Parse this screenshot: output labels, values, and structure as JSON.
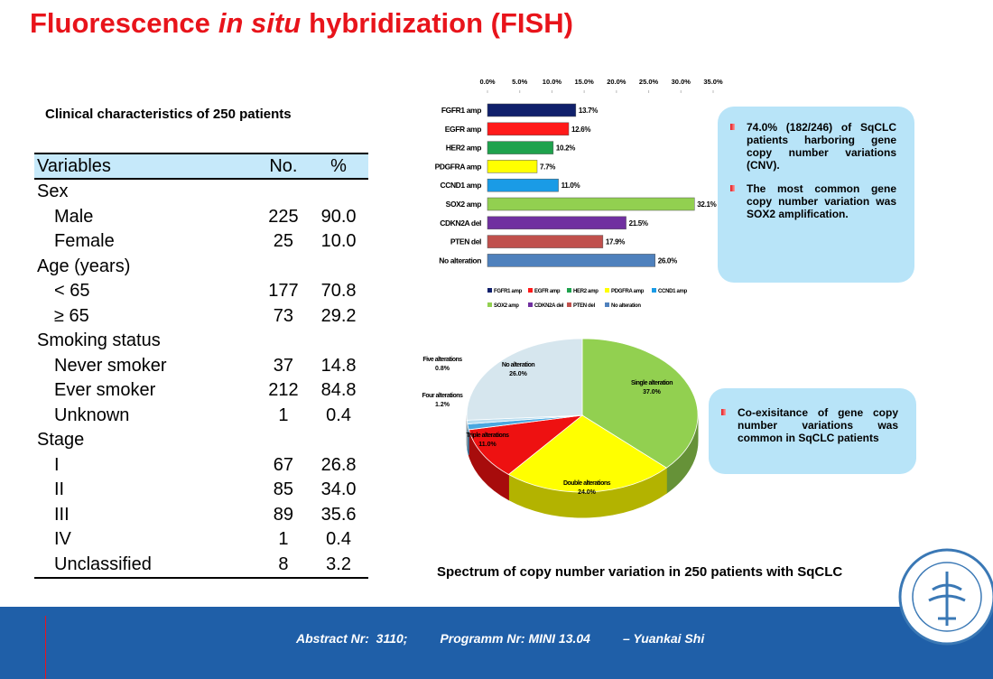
{
  "title": {
    "before": "Fluorescence",
    "italic": "in situ",
    "after": "hybridization (FISH)"
  },
  "table": {
    "caption": "Clinical characteristics of 250 patients",
    "header": [
      "Variables",
      "No.",
      "%"
    ],
    "rows": [
      {
        "label": "Sex"
      },
      {
        "label": "Male",
        "no": "225",
        "pct": "90.0"
      },
      {
        "label": "Female",
        "no": "25",
        "pct": "10.0"
      },
      {
        "label": "Age (years)"
      },
      {
        "label": "< 65",
        "no": "177",
        "pct": "70.8"
      },
      {
        "label": "≥ 65",
        "no": "73",
        "pct": "29.2"
      },
      {
        "label": "Smoking status"
      },
      {
        "label": "Never smoker",
        "no": "37",
        "pct": "14.8"
      },
      {
        "label": "Ever smoker",
        "no": "212",
        "pct": "84.8"
      },
      {
        "label": "Unknown",
        "no": "1",
        "pct": "0.4"
      },
      {
        "label": "Stage"
      },
      {
        "label": "I",
        "no": "67",
        "pct": "26.8"
      },
      {
        "label": "II",
        "no": "85",
        "pct": "34.0"
      },
      {
        "label": "III",
        "no": "89",
        "pct": "35.6"
      },
      {
        "label": "IV",
        "no": "1",
        "pct": "0.4"
      },
      {
        "label": "Unclassified",
        "no": "8",
        "pct": "3.2"
      }
    ]
  },
  "chart_data": [
    {
      "type": "bar",
      "orientation": "horizontal",
      "categories": [
        "FGFR1 amp",
        "EGFR amp",
        "HER2 amp",
        "PDGFRA amp",
        "CCND1 amp",
        "SOX2 amp",
        "CDKN2A del",
        "PTEN del",
        "No alteration"
      ],
      "values": [
        13.7,
        12.6,
        10.2,
        7.7,
        11.0,
        32.1,
        21.5,
        17.9,
        26.0
      ],
      "value_labels": [
        "13.7%",
        "12.6%",
        "10.2%",
        "7.7%",
        "11.0%",
        "32.1%",
        "21.5%",
        "17.9%",
        "26.0%"
      ],
      "colors": [
        "#10206b",
        "#ff1a1a",
        "#1fa24d",
        "#ffff00",
        "#1a9be6",
        "#92d050",
        "#7030a0",
        "#c0504d",
        "#4f81bd"
      ],
      "xlim": [
        0,
        35
      ],
      "xticks": [
        {
          "value": 0,
          "label": "0.0%"
        },
        {
          "value": 5,
          "label": "5.0%"
        },
        {
          "value": 10,
          "label": "10.0%"
        },
        {
          "value": 15,
          "label": "15.0%"
        },
        {
          "value": 20,
          "label": "20.0%"
        },
        {
          "value": 25,
          "label": "25.0%"
        },
        {
          "value": 30,
          "label": "30.0%"
        },
        {
          "value": 35,
          "label": "35.0%"
        }
      ],
      "legend": "bottom"
    },
    {
      "type": "pie",
      "categories": [
        "Single alteration",
        "Double alterations",
        "Triple alterations",
        "Four alterations",
        "Five alterations",
        "No alteration"
      ],
      "values": [
        37.0,
        24.0,
        11.0,
        1.2,
        0.8,
        26.0
      ],
      "value_labels": [
        "37.0%",
        "24.0%",
        "11.0%",
        "1.2%",
        "0.8%",
        "26.0%"
      ],
      "colors": [
        "#92d050",
        "#ffff00",
        "#ee1111",
        "#4aa8e0",
        "#b7dcef",
        "#d6e6ee"
      ]
    }
  ],
  "notes": [
    {
      "bullets": [
        "74.0% (182/246) of SqCLC patients harboring gene copy number variations (CNV).",
        "The most common gene copy number variation was SOX2 amplification."
      ]
    },
    {
      "bullets": [
        "Co-exisitance of gene copy number variations was common in SqCLC patients"
      ]
    }
  ],
  "figure_caption": "Spectrum of copy number variation in 250 patients with SqCLC",
  "footer": [
    "Abstract Nr:  3110;",
    "Programm Nr: MINI 13.04",
    "– Yuankai Shi"
  ]
}
